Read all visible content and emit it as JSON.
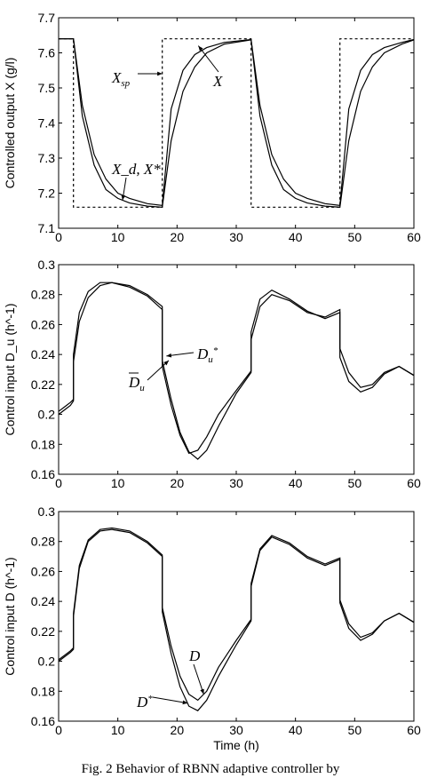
{
  "caption": "Fig. 2 Behavior of RBNN adaptive controller by",
  "chart_data": [
    {
      "type": "line",
      "xlabel": "",
      "ylabel": "Controlled output X (g/l)",
      "xlim": [
        0,
        60
      ],
      "ylim": [
        7.1,
        7.7
      ],
      "xticks": [
        "0",
        "10",
        "20",
        "30",
        "40",
        "50",
        "60"
      ],
      "yticks": [
        "7.1",
        "7.2",
        "7.3",
        "7.4",
        "7.5",
        "7.6",
        "7.7"
      ],
      "annotations": [
        "X_sp",
        "X",
        "X_d, X*"
      ],
      "series": [
        {
          "name": "X_sp",
          "style": "dashed",
          "x": [
            0,
            2.5,
            2.5,
            17.5,
            17.5,
            32.5,
            32.5,
            47.5,
            47.5,
            60
          ],
          "y": [
            7.64,
            7.64,
            7.16,
            7.16,
            7.64,
            7.64,
            7.16,
            7.16,
            7.64,
            7.64
          ]
        },
        {
          "name": "X",
          "style": "solid",
          "x": [
            0,
            2.5,
            4,
            6,
            8,
            10,
            12,
            15,
            17.5,
            19,
            21,
            23,
            25,
            28,
            32.5,
            34,
            36,
            38,
            40,
            42,
            45,
            47.5,
            49,
            51,
            53,
            55,
            58,
            60
          ],
          "y": [
            7.64,
            7.64,
            7.45,
            7.31,
            7.24,
            7.2,
            7.185,
            7.17,
            7.165,
            7.44,
            7.55,
            7.595,
            7.615,
            7.63,
            7.638,
            7.45,
            7.31,
            7.24,
            7.2,
            7.185,
            7.17,
            7.165,
            7.44,
            7.55,
            7.595,
            7.615,
            7.63,
            7.638
          ]
        },
        {
          "name": "X_d, X*",
          "style": "solid",
          "x": [
            0,
            2.5,
            4,
            6,
            8,
            10,
            12,
            15,
            17.5,
            19,
            21,
            23,
            25,
            28,
            32.5,
            34,
            36,
            38,
            40,
            42,
            45,
            47.5,
            49,
            51,
            53,
            55,
            58,
            60
          ],
          "y": [
            7.64,
            7.64,
            7.42,
            7.28,
            7.21,
            7.185,
            7.172,
            7.163,
            7.16,
            7.35,
            7.49,
            7.56,
            7.6,
            7.625,
            7.637,
            7.42,
            7.28,
            7.21,
            7.185,
            7.172,
            7.163,
            7.16,
            7.35,
            7.49,
            7.56,
            7.6,
            7.625,
            7.637
          ]
        }
      ]
    },
    {
      "type": "line",
      "xlabel": "",
      "ylabel": "Control input D_u (h^-1)",
      "xlim": [
        0,
        60
      ],
      "ylim": [
        0.16,
        0.3
      ],
      "xticks": [
        "0",
        "10",
        "20",
        "30",
        "40",
        "50",
        "60"
      ],
      "yticks": [
        "0.16",
        "0.18",
        "0.2",
        "0.22",
        "0.24",
        "0.26",
        "0.28",
        "0.3"
      ],
      "annotations": [
        "D_u*",
        "D̂_u"
      ],
      "series": [
        {
          "name": "D_u*",
          "style": "solid",
          "x": [
            0,
            1,
            2,
            2.5,
            2.5,
            3.5,
            5,
            7,
            9,
            12,
            15,
            17.5,
            17.5,
            19,
            20.5,
            22,
            23.5,
            25,
            27,
            30,
            32.5,
            32.5,
            34,
            36,
            39,
            42,
            45,
            47.5,
            47.5,
            49,
            51,
            53,
            55,
            57.5,
            60
          ],
          "y": [
            0.202,
            0.205,
            0.208,
            0.21,
            0.235,
            0.262,
            0.278,
            0.286,
            0.288,
            0.286,
            0.28,
            0.272,
            0.236,
            0.21,
            0.188,
            0.175,
            0.17,
            0.176,
            0.192,
            0.214,
            0.228,
            0.25,
            0.272,
            0.28,
            0.276,
            0.268,
            0.265,
            0.27,
            0.244,
            0.228,
            0.218,
            0.22,
            0.228,
            0.232,
            0.226
          ]
        },
        {
          "name": "D̂_u",
          "style": "solid",
          "x": [
            0,
            1,
            2,
            2.5,
            2.5,
            3.5,
            5,
            7,
            9,
            12,
            15,
            17.5,
            17.5,
            19,
            20.5,
            22,
            23.5,
            25,
            27,
            30,
            32.5,
            32.5,
            34,
            36,
            39,
            42,
            45,
            47.5,
            47.5,
            49,
            51,
            53,
            55,
            57.5,
            60
          ],
          "y": [
            0.2,
            0.203,
            0.206,
            0.209,
            0.24,
            0.268,
            0.282,
            0.288,
            0.288,
            0.285,
            0.279,
            0.27,
            0.232,
            0.206,
            0.186,
            0.174,
            0.176,
            0.185,
            0.2,
            0.216,
            0.229,
            0.255,
            0.277,
            0.283,
            0.277,
            0.269,
            0.264,
            0.268,
            0.238,
            0.222,
            0.215,
            0.218,
            0.227,
            0.232,
            0.226
          ]
        }
      ]
    },
    {
      "type": "line",
      "xlabel": "Time (h)",
      "ylabel": "Control input D (h^-1)",
      "xlim": [
        0,
        60
      ],
      "ylim": [
        0.16,
        0.3
      ],
      "xticks": [
        "0",
        "10",
        "20",
        "30",
        "40",
        "50",
        "60"
      ],
      "yticks": [
        "0.16",
        "0.18",
        "0.2",
        "0.22",
        "0.24",
        "0.26",
        "0.28",
        "0.3"
      ],
      "annotations": [
        "D",
        "D*"
      ],
      "series": [
        {
          "name": "D",
          "style": "solid",
          "x": [
            0,
            1,
            2,
            2.5,
            2.5,
            3.5,
            5,
            7,
            9,
            12,
            15,
            17.5,
            17.5,
            19,
            20.5,
            22,
            23.5,
            25,
            27,
            30,
            32.5,
            32.5,
            34,
            36,
            39,
            42,
            45,
            47.5,
            47.5,
            49,
            51,
            53,
            55,
            57.5,
            60
          ],
          "y": [
            0.201,
            0.204,
            0.207,
            0.209,
            0.232,
            0.264,
            0.281,
            0.288,
            0.289,
            0.287,
            0.28,
            0.271,
            0.236,
            0.21,
            0.19,
            0.178,
            0.174,
            0.18,
            0.196,
            0.214,
            0.228,
            0.252,
            0.275,
            0.284,
            0.279,
            0.27,
            0.265,
            0.269,
            0.241,
            0.225,
            0.216,
            0.219,
            0.227,
            0.232,
            0.226
          ]
        },
        {
          "name": "D*",
          "style": "solid",
          "x": [
            0,
            1,
            2,
            2.5,
            2.5,
            3.5,
            5,
            7,
            9,
            12,
            15,
            17.5,
            17.5,
            19,
            20.5,
            22,
            23.5,
            25,
            27,
            30,
            32.5,
            32.5,
            34,
            36,
            39,
            42,
            45,
            47.5,
            47.5,
            49,
            51,
            53,
            55,
            57.5,
            60
          ],
          "y": [
            0.2,
            0.203,
            0.206,
            0.208,
            0.23,
            0.262,
            0.28,
            0.287,
            0.288,
            0.286,
            0.279,
            0.27,
            0.233,
            0.205,
            0.183,
            0.17,
            0.167,
            0.174,
            0.19,
            0.211,
            0.227,
            0.25,
            0.274,
            0.283,
            0.278,
            0.269,
            0.264,
            0.268,
            0.239,
            0.222,
            0.214,
            0.218,
            0.227,
            0.232,
            0.226
          ]
        }
      ]
    }
  ]
}
